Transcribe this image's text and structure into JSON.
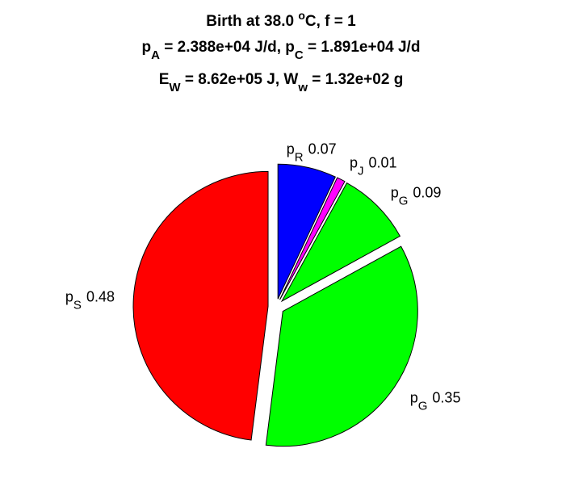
{
  "chart_data": {
    "type": "pie",
    "title": [
      [
        {
          "text": "Birth at 38.0 "
        },
        {
          "text": "o",
          "shift": "super"
        },
        {
          "text": "C, f = 1"
        }
      ],
      [
        {
          "text": "p"
        },
        {
          "text": "A",
          "shift": "sub"
        },
        {
          "text": " = 2.388e+04 J/d, p"
        },
        {
          "text": "C",
          "shift": "sub"
        },
        {
          "text": " = 1.891e+04 J/d"
        }
      ],
      [
        {
          "text": "E"
        },
        {
          "text": "W",
          "shift": "sub"
        },
        {
          "text": " = 8.62e+05 J, W"
        },
        {
          "text": "w",
          "shift": "sub"
        },
        {
          "text": " = 1.32e+02 g"
        }
      ]
    ],
    "labels": [
      {
        "text": "p",
        "sub": "R"
      },
      {
        "text": "p",
        "sub": "J"
      },
      {
        "text": "p",
        "sub": "G"
      },
      {
        "text": "p",
        "sub": "G"
      },
      {
        "text": "p",
        "sub": "S"
      }
    ],
    "values": [
      0.07,
      0.01,
      0.09,
      0.35,
      0.48
    ],
    "colors": [
      "#0000ff",
      "#ff00ff",
      "#00ff00",
      "#00ff00",
      "#ff0000"
    ],
    "explode": true
  }
}
